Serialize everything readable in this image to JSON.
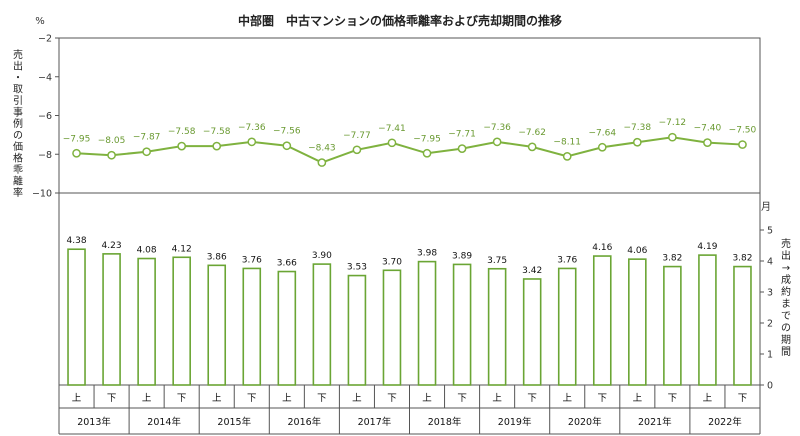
{
  "chart_data": {
    "title": "中部圏　中古マンションの価格乖離率および売却期間の推移",
    "type": "line+bar",
    "categories": [
      {
        "half": "上",
        "year": "2013年"
      },
      {
        "half": "下",
        "year": "2013年"
      },
      {
        "half": "上",
        "year": "2014年"
      },
      {
        "half": "下",
        "year": "2014年"
      },
      {
        "half": "上",
        "year": "2015年"
      },
      {
        "half": "下",
        "year": "2015年"
      },
      {
        "half": "上",
        "year": "2016年"
      },
      {
        "half": "下",
        "year": "2016年"
      },
      {
        "half": "上",
        "year": "2017年"
      },
      {
        "half": "下",
        "year": "2017年"
      },
      {
        "half": "上",
        "year": "2018年"
      },
      {
        "half": "下",
        "year": "2018年"
      },
      {
        "half": "上",
        "year": "2019年"
      },
      {
        "half": "下",
        "year": "2019年"
      },
      {
        "half": "上",
        "year": "2020年"
      },
      {
        "half": "下",
        "year": "2020年"
      },
      {
        "half": "上",
        "year": "2021年"
      },
      {
        "half": "下",
        "year": "2021年"
      },
      {
        "half": "上",
        "year": "2022年"
      },
      {
        "half": "下",
        "year": "2022年"
      }
    ],
    "years": [
      "2013年",
      "2014年",
      "2015年",
      "2016年",
      "2017年",
      "2018年",
      "2019年",
      "2020年",
      "2021年",
      "2022年"
    ],
    "line_series": {
      "values": [
        -7.95,
        -8.05,
        -7.87,
        -7.58,
        -7.58,
        -7.36,
        -7.56,
        -8.43,
        -7.77,
        -7.41,
        -7.95,
        -7.71,
        -7.36,
        -7.62,
        -8.11,
        -7.64,
        -7.38,
        -7.12,
        -7.4,
        -7.5
      ],
      "labels": [
        "−7.95",
        "−8.05",
        "−7.87",
        "−7.58",
        "−7.58",
        "−7.36",
        "−7.56",
        "−8.43",
        "−7.77",
        "−7.41",
        "−7.95",
        "−7.71",
        "−7.36",
        "−7.62",
        "−8.11",
        "−7.64",
        "−7.38",
        "−7.12",
        "−7.40",
        "−7.50"
      ],
      "color": "#7fb23f"
    },
    "bar_series": {
      "values": [
        4.38,
        4.23,
        4.08,
        4.12,
        3.86,
        3.76,
        3.66,
        3.9,
        3.53,
        3.7,
        3.98,
        3.89,
        3.75,
        3.42,
        3.76,
        4.16,
        4.06,
        3.82,
        4.19,
        3.82
      ],
      "labels": [
        "4.38",
        "4.23",
        "4.08",
        "4.12",
        "3.86",
        "3.76",
        "3.66",
        "3.90",
        "3.53",
        "3.70",
        "3.98",
        "3.89",
        "3.75",
        "3.42",
        "3.76",
        "4.16",
        "4.06",
        "3.82",
        "4.19",
        "3.82"
      ],
      "color": "#6aa534"
    },
    "left_axis": {
      "unit": "%",
      "label": "売出・取引事例の価格乖離率",
      "ticks": [
        "−2",
        "−4",
        "−6",
        "−8",
        "−10"
      ],
      "range": [
        -10,
        -2
      ]
    },
    "right_axis": {
      "unit": "月",
      "label": "売出→成約までの期間",
      "ticks": [
        "0",
        "1",
        "2",
        "3",
        "4",
        "5"
      ],
      "range": [
        0,
        5
      ]
    }
  }
}
